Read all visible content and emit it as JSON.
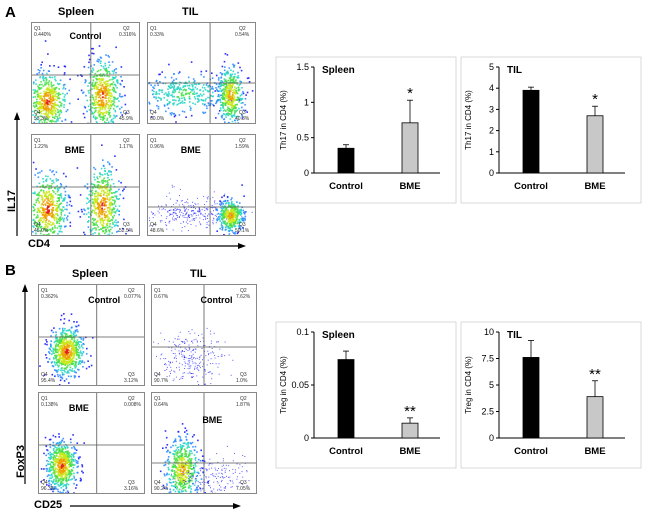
{
  "panels": [
    {
      "letter": "A"
    },
    {
      "letter": "B"
    }
  ],
  "flow": {
    "A": {
      "col_headers": [
        "Spleen",
        "TIL"
      ],
      "y_axis": "IL17",
      "x_axis": "CD4",
      "plots": [
        {
          "label": "Control",
          "q1": "0.440%",
          "q2": "0.316%",
          "q4": "53.3%",
          "q3": "45.9%"
        },
        {
          "label": "",
          "q1": "0.33%",
          "q2": "0.54%",
          "q4": "60.0%",
          "q3": "40.3%"
        },
        {
          "label": "BME",
          "q1": "1.22%",
          "q2": "1.17%",
          "q4": "45.0%",
          "q3": "52.5%"
        },
        {
          "label": "BME",
          "q1": "0.96%",
          "q2": "1.59%",
          "q4": "48.6%",
          "q3": "50.1%"
        }
      ]
    },
    "B": {
      "col_headers": [
        "Spleen",
        "TIL"
      ],
      "y_axis": "FoxP3",
      "x_axis": "CD25",
      "plots": [
        {
          "label": "Control",
          "q1": "0.362%",
          "q2": "0.077%",
          "q4": "95.4%",
          "q3": "3.12%"
        },
        {
          "label": "Control",
          "q1": "0.67%",
          "q2": "7.62%",
          "q4": "90.7%",
          "q3": "1.0%"
        },
        {
          "label": "BME",
          "q1": "0.138%",
          "q2": "0.008%",
          "q4": "96.3%",
          "q3": "3.16%"
        },
        {
          "label": "BME",
          "q1": "0.64%",
          "q2": "1.87%",
          "q4": "90.2%",
          "q3": "7.05%"
        }
      ]
    }
  },
  "colors": {
    "control": "#000000",
    "bme": "#c8c8c8",
    "axis": "#000000"
  },
  "chart_data": [
    {
      "type": "bar",
      "title": "Spleen",
      "ylabel": "Th17 in CD4 (%)",
      "categories": [
        "Control",
        "BME"
      ],
      "values": [
        0.35,
        0.71
      ],
      "errors": [
        0.05,
        0.32
      ],
      "ylim": [
        0,
        1.5
      ],
      "yticks": [
        "0",
        "0.5",
        "1",
        "1.5"
      ],
      "sig": [
        "",
        "*"
      ]
    },
    {
      "type": "bar",
      "title": "TIL",
      "ylabel": "Th17 in CD4 (%)",
      "categories": [
        "Control",
        "BME"
      ],
      "values": [
        3.9,
        2.7
      ],
      "errors": [
        0.15,
        0.45
      ],
      "ylim": [
        0,
        5
      ],
      "yticks": [
        "0",
        "1",
        "2",
        "3",
        "4",
        "5"
      ],
      "sig": [
        "",
        "*"
      ]
    },
    {
      "type": "bar",
      "title": "Spleen",
      "ylabel": "Treg in CD4 (%)",
      "categories": [
        "Control",
        "BME"
      ],
      "values": [
        0.074,
        0.014
      ],
      "errors": [
        0.008,
        0.005
      ],
      "ylim": [
        0,
        0.1
      ],
      "yticks": [
        "0",
        "0.05",
        "0.1"
      ],
      "sig": [
        "",
        "**"
      ]
    },
    {
      "type": "bar",
      "title": "TIL",
      "ylabel": "Treg in CD4 (%)",
      "categories": [
        "Control",
        "BME"
      ],
      "values": [
        7.6,
        3.9
      ],
      "errors": [
        1.6,
        1.5
      ],
      "ylim": [
        0,
        10
      ],
      "yticks": [
        "0",
        "2.5",
        "5",
        "7.5",
        "10"
      ],
      "sig": [
        "",
        "**"
      ]
    }
  ]
}
